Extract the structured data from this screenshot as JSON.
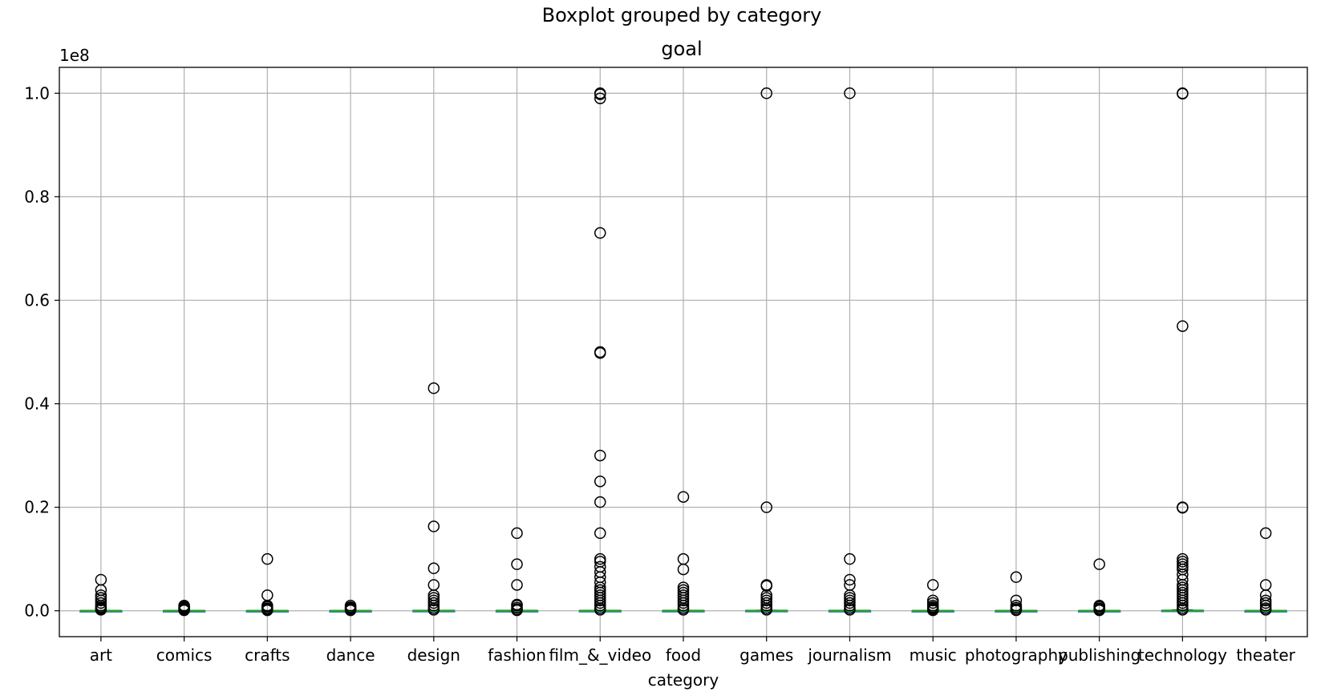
{
  "chart_data": {
    "type": "boxplot",
    "suptitle": "Boxplot grouped by category",
    "title": "goal",
    "xlabel": "category",
    "ylabel": "",
    "y_offset_label": "1e8",
    "y_scale": 100000000,
    "ylim": [
      -5000000,
      105000000
    ],
    "yticks": [
      0,
      20000000,
      40000000,
      60000000,
      80000000,
      100000000
    ],
    "ytick_labels": [
      "0.0",
      "0.2",
      "0.4",
      "0.6",
      "0.8",
      "1.0"
    ],
    "grid": true,
    "colors": {
      "median": "#2ca02c",
      "box": "#1f77b4",
      "flier": "#000000",
      "grid": "#b0b0b0"
    },
    "categories": [
      "art",
      "comics",
      "crafts",
      "dance",
      "design",
      "fashion",
      "film_&_video",
      "food",
      "games",
      "journalism",
      "music",
      "photography",
      "publishing",
      "technology",
      "theater"
    ],
    "box_summary_note": "",
    "series": [
      {
        "category": "art",
        "q1": 1500,
        "median": 5000,
        "q3": 15000,
        "whisker_low": 0,
        "whisker_high": 35000,
        "outliers": [
          6000000,
          4000000,
          3000000,
          2500000,
          2000000,
          1500000,
          1000000,
          700000,
          500000,
          300000,
          200000
        ]
      },
      {
        "category": "comics",
        "q1": 2000,
        "median": 5000,
        "q3": 12000,
        "whisker_low": 0,
        "whisker_high": 27000,
        "outliers": [
          1000000,
          800000,
          600000,
          500000,
          300000,
          200000,
          100000
        ]
      },
      {
        "category": "crafts",
        "q1": 1000,
        "median": 3000,
        "q3": 8000,
        "whisker_low": 0,
        "whisker_high": 18000,
        "outliers": [
          10000000,
          3000000,
          1000000,
          800000,
          500000,
          300000,
          100000
        ]
      },
      {
        "category": "dance",
        "q1": 2000,
        "median": 4000,
        "q3": 8000,
        "whisker_low": 0,
        "whisker_high": 17000,
        "outliers": [
          1000000,
          700000,
          500000,
          300000,
          100000
        ]
      },
      {
        "category": "design",
        "q1": 5000,
        "median": 15000,
        "q3": 40000,
        "whisker_low": 0,
        "whisker_high": 92000,
        "outliers": [
          43000000,
          16300000,
          8200000,
          5000000,
          3000000,
          2500000,
          2000000,
          1500000,
          1000000,
          500000,
          200000
        ]
      },
      {
        "category": "fashion",
        "q1": 2500,
        "median": 7000,
        "q3": 20000,
        "whisker_low": 0,
        "whisker_high": 45000,
        "outliers": [
          15000000,
          9000000,
          5000000,
          1200000,
          1000000,
          600000,
          300000,
          100000
        ]
      },
      {
        "category": "film_&_video",
        "q1": 2500,
        "median": 8000,
        "q3": 30000,
        "whisker_low": 0,
        "whisker_high": 70000,
        "outliers": [
          100000000,
          99800000,
          99000000,
          73000000,
          50000000,
          49800000,
          30000000,
          25000000,
          21000000,
          15000000,
          10000000,
          9500000,
          8500000,
          7500000,
          6500000,
          5500000,
          4500000,
          4000000,
          3500000,
          3000000,
          2500000,
          2000000,
          1500000,
          1000000,
          500000,
          200000
        ]
      },
      {
        "category": "food",
        "q1": 4000,
        "median": 10000,
        "q3": 30000,
        "whisker_low": 0,
        "whisker_high": 70000,
        "outliers": [
          22000000,
          10000000,
          8000000,
          4500000,
          4000000,
          3500000,
          3000000,
          2500000,
          2000000,
          1500000,
          1000000,
          500000,
          200000
        ]
      },
      {
        "category": "games",
        "q1": 5000,
        "median": 15000,
        "q3": 50000,
        "whisker_low": 0,
        "whisker_high": 115000,
        "outliers": [
          100000000,
          20000000,
          5000000,
          4800000,
          3000000,
          2500000,
          2000000,
          1500000,
          1000000,
          500000,
          200000
        ]
      },
      {
        "category": "journalism",
        "q1": 3000,
        "median": 8000,
        "q3": 25000,
        "whisker_low": 0,
        "whisker_high": 57000,
        "outliers": [
          100000000,
          10000000,
          6000000,
          5000000,
          3000000,
          2500000,
          2000000,
          1500000,
          1000000,
          500000,
          200000
        ]
      },
      {
        "category": "music",
        "q1": 2000,
        "median": 5000,
        "q3": 12000,
        "whisker_low": 0,
        "whisker_high": 27000,
        "outliers": [
          5000000,
          2000000,
          1500000,
          1000000,
          700000,
          500000,
          300000,
          100000
        ]
      },
      {
        "category": "photography",
        "q1": 2500,
        "median": 6000,
        "q3": 15000,
        "whisker_low": 0,
        "whisker_high": 33000,
        "outliers": [
          6500000,
          2000000,
          1000000,
          600000,
          300000,
          100000
        ]
      },
      {
        "category": "publishing",
        "q1": 2000,
        "median": 5000,
        "q3": 12000,
        "whisker_low": 0,
        "whisker_high": 27000,
        "outliers": [
          9000000,
          1000000,
          800000,
          500000,
          300000,
          100000
        ]
      },
      {
        "category": "technology",
        "q1": 10000,
        "median": 30000,
        "q3": 80000,
        "whisker_low": 0,
        "whisker_high": 185000,
        "outliers": [
          100000000,
          99900000,
          55000000,
          20000000,
          19900000,
          10000000,
          9500000,
          9000000,
          8500000,
          8000000,
          7000000,
          6000000,
          5000000,
          4500000,
          4000000,
          3500000,
          3000000,
          2500000,
          2000000,
          1500000,
          1000000,
          500000,
          200000
        ]
      },
      {
        "category": "theater",
        "q1": 2000,
        "median": 5000,
        "q3": 12000,
        "whisker_low": 0,
        "whisker_high": 27000,
        "outliers": [
          15000000,
          5000000,
          3000000,
          2000000,
          1500000,
          1000000,
          500000,
          200000
        ]
      }
    ]
  }
}
